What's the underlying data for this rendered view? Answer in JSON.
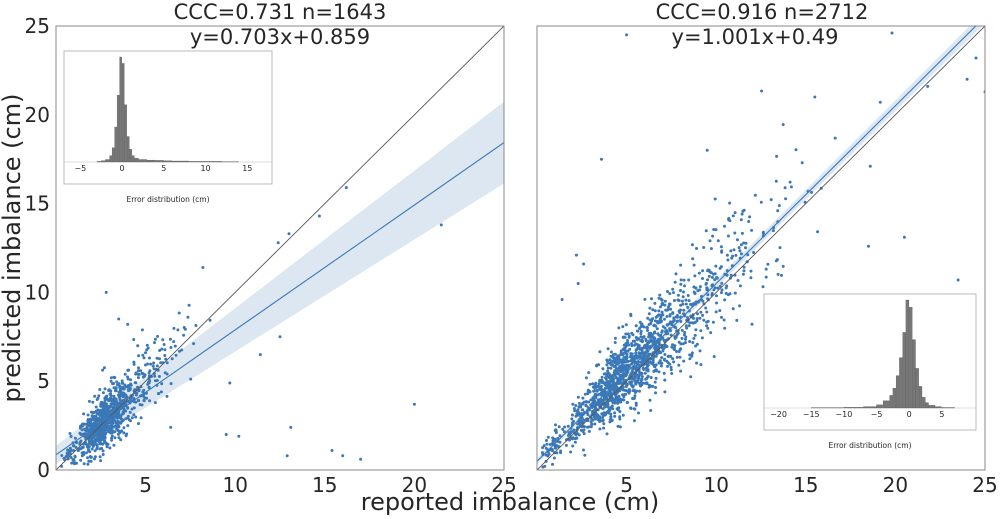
{
  "figure": {
    "xlabel": "reported imbalance (cm)",
    "ylabel": "predicted imbalance (cm)"
  },
  "colors": {
    "points": "#3a78b8",
    "fit_line": "#3a78b8",
    "confidence_band": "#dde7f2",
    "identity_line": "#555555",
    "histogram": "#777777",
    "frame": "#888888"
  },
  "chart_data": [
    {
      "type": "scatter",
      "title_line1": "CCC=0.731 n=1643",
      "title_line2": "y=0.703x+0.859",
      "xlim": [
        0,
        25
      ],
      "ylim": [
        0,
        25
      ],
      "xticks": [
        5,
        10,
        15,
        20,
        25
      ],
      "yticks": [
        0,
        5,
        10,
        15,
        20,
        25
      ],
      "fit": {
        "slope": 0.703,
        "intercept": 0.859
      },
      "identity_line": true,
      "confidence_band": {
        "at_x0": 0.5,
        "at_x25": 2.3
      },
      "n": 1643,
      "cluster": {
        "center_x": 2.5,
        "center_y": 2.6,
        "spread": 1.5
      },
      "outliers": [
        [
          21.5,
          13.8
        ],
        [
          16.2,
          15.9
        ],
        [
          14.7,
          14.3
        ],
        [
          13.0,
          13.3
        ],
        [
          12.4,
          12.8
        ],
        [
          20.0,
          3.7
        ],
        [
          13.1,
          2.4
        ],
        [
          16.0,
          0.8
        ],
        [
          12.5,
          7.5
        ],
        [
          9.5,
          2.0
        ],
        [
          10.2,
          1.9
        ],
        [
          12.9,
          0.8
        ],
        [
          3.5,
          8.5
        ],
        [
          4.0,
          8.2
        ],
        [
          2.8,
          10.0
        ],
        [
          8.2,
          11.4
        ],
        [
          11.4,
          6.5
        ],
        [
          6.4,
          2.4
        ],
        [
          9.7,
          4.9
        ],
        [
          17.0,
          0.6
        ],
        [
          15.4,
          1.1
        ]
      ],
      "inset": {
        "type": "histogram",
        "xlabel": "Error distribution (cm)",
        "xticks": [
          -5,
          0,
          5,
          10,
          15
        ],
        "xlim": [
          -6,
          17
        ],
        "bins": [
          -3.0,
          -2.5,
          -2.0,
          -1.5,
          -1.2,
          -0.9,
          -0.6,
          -0.3,
          0.0,
          0.3,
          0.6,
          0.9,
          1.2,
          1.5,
          2.0,
          3.0,
          4.0,
          5.0,
          6.0,
          8.0,
          10.0,
          12.0,
          14.0
        ],
        "counts": [
          2,
          4,
          8,
          20,
          45,
          110,
          210,
          330,
          310,
          180,
          80,
          40,
          20,
          12,
          8,
          6,
          5,
          4,
          3,
          2,
          2,
          1
        ]
      }
    },
    {
      "type": "scatter",
      "title_line1": "CCC=0.916 n=2712",
      "title_line2": "y=1.001x+0.49",
      "xlim": [
        0,
        25
      ],
      "ylim": [
        0,
        25
      ],
      "xticks": [
        5,
        10,
        15,
        20,
        25
      ],
      "yticks": [],
      "fit": {
        "slope": 1.001,
        "intercept": 0.49
      },
      "identity_line": true,
      "confidence_band": {
        "at_x0": 0.15,
        "at_x25": 0.35
      },
      "n": 2712,
      "cluster": {
        "center_x": 4.5,
        "center_y": 4.9,
        "spread": 3.2
      },
      "outliers": [
        [
          5.0,
          24.5
        ],
        [
          3.6,
          17.5
        ],
        [
          2.2,
          12.1
        ],
        [
          2.6,
          11.6
        ],
        [
          14.8,
          17.3
        ],
        [
          20.5,
          13.1
        ],
        [
          18.5,
          12.6
        ],
        [
          23.5,
          10.7
        ],
        [
          2.3,
          10.5
        ],
        [
          1.4,
          9.6
        ],
        [
          25.0,
          21.3
        ],
        [
          24.0,
          22.0
        ],
        [
          24.5,
          23.2
        ],
        [
          15.5,
          21.0
        ],
        [
          9.5,
          18.0
        ],
        [
          18.6,
          17.1
        ],
        [
          21.8,
          21.6
        ]
      ],
      "inset": {
        "type": "histogram",
        "xlabel": "Error distribution (cm)",
        "xticks": [
          -20,
          -15,
          -10,
          -5,
          0,
          5
        ],
        "xlim": [
          -21,
          9
        ],
        "bins": [
          -15.0,
          -10.0,
          -7.0,
          -5.0,
          -4.0,
          -3.0,
          -2.5,
          -2.0,
          -1.5,
          -1.0,
          -0.5,
          0.0,
          0.5,
          1.0,
          1.5,
          2.0,
          2.5,
          3.0,
          4.0,
          5.0,
          7.0
        ],
        "counts": [
          2,
          4,
          8,
          18,
          40,
          70,
          110,
          180,
          280,
          420,
          600,
          560,
          380,
          220,
          120,
          60,
          30,
          15,
          8,
          3
        ]
      }
    }
  ]
}
